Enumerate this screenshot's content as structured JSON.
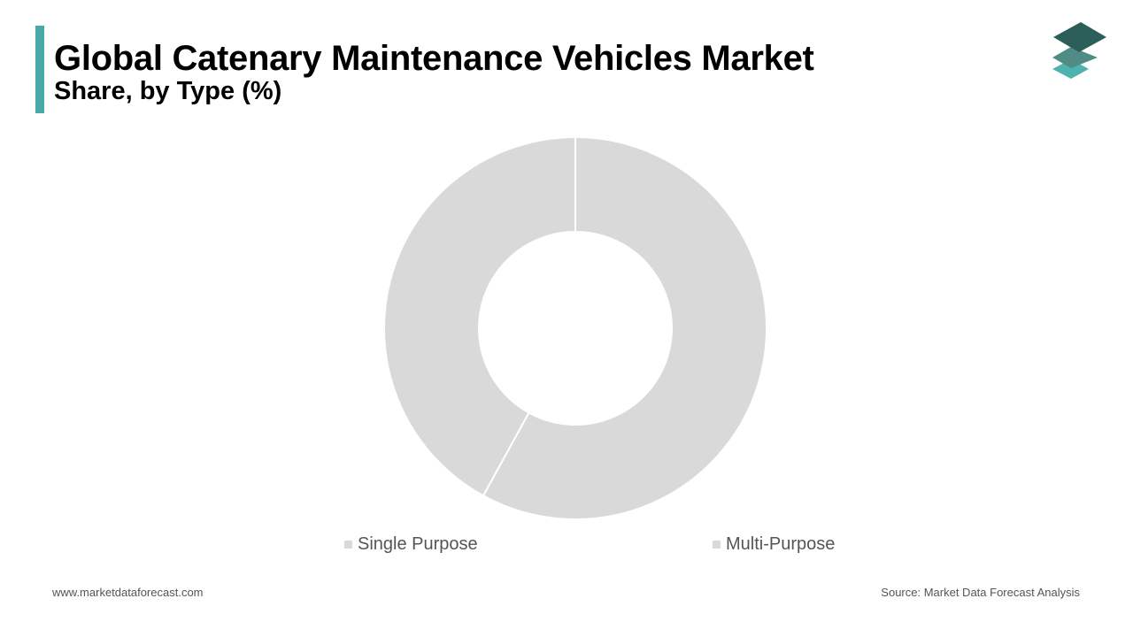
{
  "header": {
    "title": "Global Catenary Maintenance Vehicles Market",
    "subtitle": "Share, by Type (%)"
  },
  "logo": {
    "icon": "layered-stack-logo-icon",
    "colors": [
      "#2d5f5a",
      "#4f8c85",
      "#4fb3ad"
    ]
  },
  "chart_data": {
    "type": "pie",
    "variant": "donut",
    "title": "",
    "categories": [
      "Single Purpose",
      "Multi-Purpose"
    ],
    "values": [
      42,
      58
    ],
    "colors": [
      "#d9d9d9",
      "#d9d9d9"
    ],
    "legend": {
      "placement": "bottom",
      "items": [
        {
          "label": "Single Purpose",
          "color": "#d9d9d9"
        },
        {
          "label": "Multi-Purpose",
          "color": "#d9d9d9"
        }
      ]
    }
  },
  "footer": {
    "website": "www.marketdataforecast.com",
    "source": "Source: Market Data Forecast Analysis"
  },
  "colors": {
    "accent": "#4aa8a8",
    "slice_separator": "#ffffff"
  }
}
